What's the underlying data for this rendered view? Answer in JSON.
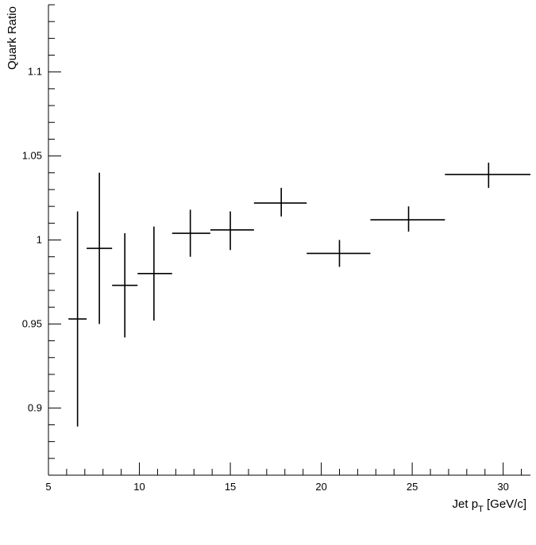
{
  "chart_data": {
    "type": "scatter",
    "xlabel_main": "Jet p",
    "xlabel_sub": "T",
    "xlabel_unit": " [GeV/c]",
    "ylabel": "Quark Ratio",
    "xlim": [
      5,
      31.5
    ],
    "ylim": [
      0.86,
      1.14
    ],
    "x_ticks": [
      5,
      10,
      15,
      20,
      25,
      30
    ],
    "y_ticks": [
      0.9,
      0.95,
      1,
      1.05,
      1.1
    ],
    "x_tick_labels": [
      "5",
      "10",
      "15",
      "20",
      "25",
      "30"
    ],
    "y_tick_labels": [
      "0.9",
      "0.95",
      "1",
      "1.05",
      "1.1"
    ],
    "grid": false,
    "points": [
      {
        "x": 6.6,
        "xlo": 6.1,
        "xhi": 7.1,
        "y": 0.953,
        "ylo": 0.889,
        "yhi": 1.017
      },
      {
        "x": 7.8,
        "xlo": 7.1,
        "xhi": 8.5,
        "y": 0.995,
        "ylo": 0.95,
        "yhi": 1.04
      },
      {
        "x": 9.2,
        "xlo": 8.5,
        "xhi": 9.9,
        "y": 0.973,
        "ylo": 0.942,
        "yhi": 1.004
      },
      {
        "x": 10.8,
        "xlo": 9.9,
        "xhi": 11.8,
        "y": 0.98,
        "ylo": 0.952,
        "yhi": 1.008
      },
      {
        "x": 12.8,
        "xlo": 11.8,
        "xhi": 13.9,
        "y": 1.004,
        "ylo": 0.99,
        "yhi": 1.018
      },
      {
        "x": 15.0,
        "xlo": 13.9,
        "xhi": 16.3,
        "y": 1.006,
        "ylo": 0.994,
        "yhi": 1.017
      },
      {
        "x": 17.8,
        "xlo": 16.3,
        "xhi": 19.2,
        "y": 1.022,
        "ylo": 1.014,
        "yhi": 1.031
      },
      {
        "x": 21.0,
        "xlo": 19.2,
        "xhi": 22.7,
        "y": 0.992,
        "ylo": 0.984,
        "yhi": 1.0
      },
      {
        "x": 24.8,
        "xlo": 22.7,
        "xhi": 26.8,
        "y": 1.012,
        "ylo": 1.005,
        "yhi": 1.02
      },
      {
        "x": 29.2,
        "xlo": 26.8,
        "xhi": 31.5,
        "y": 1.039,
        "ylo": 1.031,
        "yhi": 1.046
      }
    ]
  }
}
